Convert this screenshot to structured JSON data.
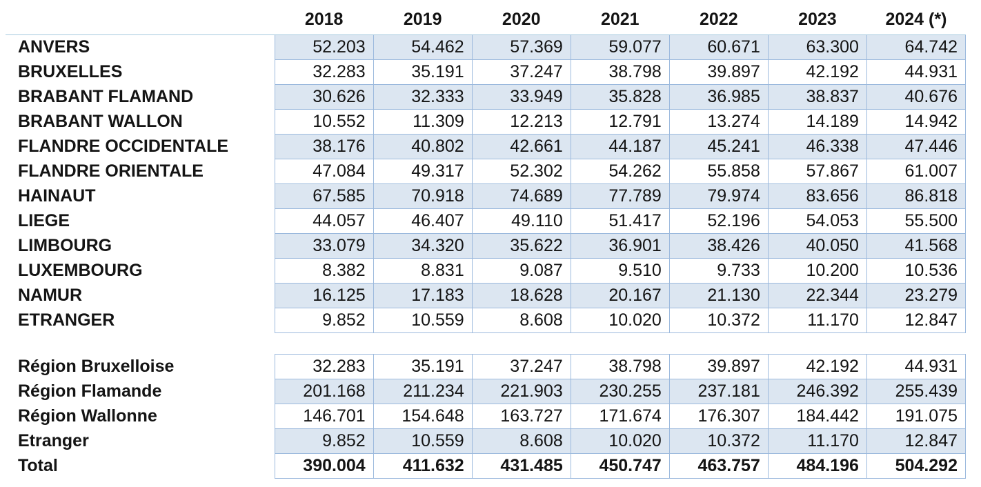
{
  "colors": {
    "shaded_row_fill": "#dce6f1",
    "cell_border": "#9bb9dd",
    "header_rule": "#a3c8de",
    "text": "#141414"
  },
  "chart_data": {
    "type": "table",
    "title": "",
    "columns": [
      "2018",
      "2019",
      "2020",
      "2021",
      "2022",
      "2023",
      "2024 (*)"
    ],
    "footnote_marker": "(*)",
    "sections": [
      {
        "name": "provinces",
        "rows": [
          {
            "label": "ANVERS",
            "values": [
              "52.203",
              "54.462",
              "57.369",
              "59.077",
              "60.671",
              "63.300",
              "64.742"
            ],
            "shaded": true
          },
          {
            "label": "BRUXELLES",
            "values": [
              "32.283",
              "35.191",
              "37.247",
              "38.798",
              "39.897",
              "42.192",
              "44.931"
            ],
            "shaded": false
          },
          {
            "label": "BRABANT FLAMAND",
            "values": [
              "30.626",
              "32.333",
              "33.949",
              "35.828",
              "36.985",
              "38.837",
              "40.676"
            ],
            "shaded": true
          },
          {
            "label": "BRABANT WALLON",
            "values": [
              "10.552",
              "11.309",
              "12.213",
              "12.791",
              "13.274",
              "14.189",
              "14.942"
            ],
            "shaded": false
          },
          {
            "label": "FLANDRE OCCIDENTALE",
            "values": [
              "38.176",
              "40.802",
              "42.661",
              "44.187",
              "45.241",
              "46.338",
              "47.446"
            ],
            "shaded": true
          },
          {
            "label": "FLANDRE ORIENTALE",
            "values": [
              "47.084",
              "49.317",
              "52.302",
              "54.262",
              "55.858",
              "57.867",
              "61.007"
            ],
            "shaded": false
          },
          {
            "label": "HAINAUT",
            "values": [
              "67.585",
              "70.918",
              "74.689",
              "77.789",
              "79.974",
              "83.656",
              "86.818"
            ],
            "shaded": true
          },
          {
            "label": "LIEGE",
            "values": [
              "44.057",
              "46.407",
              "49.110",
              "51.417",
              "52.196",
              "54.053",
              "55.500"
            ],
            "shaded": false
          },
          {
            "label": "LIMBOURG",
            "values": [
              "33.079",
              "34.320",
              "35.622",
              "36.901",
              "38.426",
              "40.050",
              "41.568"
            ],
            "shaded": true
          },
          {
            "label": "LUXEMBOURG",
            "values": [
              "8.382",
              "8.831",
              "9.087",
              "9.510",
              "9.733",
              "10.200",
              "10.536"
            ],
            "shaded": false
          },
          {
            "label": "NAMUR",
            "values": [
              "16.125",
              "17.183",
              "18.628",
              "20.167",
              "21.130",
              "22.344",
              "23.279"
            ],
            "shaded": true
          },
          {
            "label": "ETRANGER",
            "values": [
              "9.852",
              "10.559",
              "8.608",
              "10.020",
              "10.372",
              "11.170",
              "12.847"
            ],
            "shaded": false
          }
        ]
      },
      {
        "name": "regions",
        "rows": [
          {
            "label": "Région Bruxelloise",
            "values": [
              "32.283",
              "35.191",
              "37.247",
              "38.798",
              "39.897",
              "42.192",
              "44.931"
            ],
            "shaded": false
          },
          {
            "label": "Région Flamande",
            "values": [
              "201.168",
              "211.234",
              "221.903",
              "230.255",
              "237.181",
              "246.392",
              "255.439"
            ],
            "shaded": true
          },
          {
            "label": "Région Wallonne",
            "values": [
              "146.701",
              "154.648",
              "163.727",
              "171.674",
              "176.307",
              "184.442",
              "191.075"
            ],
            "shaded": false
          },
          {
            "label": "Etranger",
            "values": [
              "9.852",
              "10.559",
              "8.608",
              "10.020",
              "10.372",
              "11.170",
              "12.847"
            ],
            "shaded": true
          },
          {
            "label": "Total",
            "values": [
              "390.004",
              "411.632",
              "431.485",
              "450.747",
              "463.757",
              "484.196",
              "504.292"
            ],
            "shaded": false,
            "bold": true
          }
        ]
      }
    ]
  }
}
